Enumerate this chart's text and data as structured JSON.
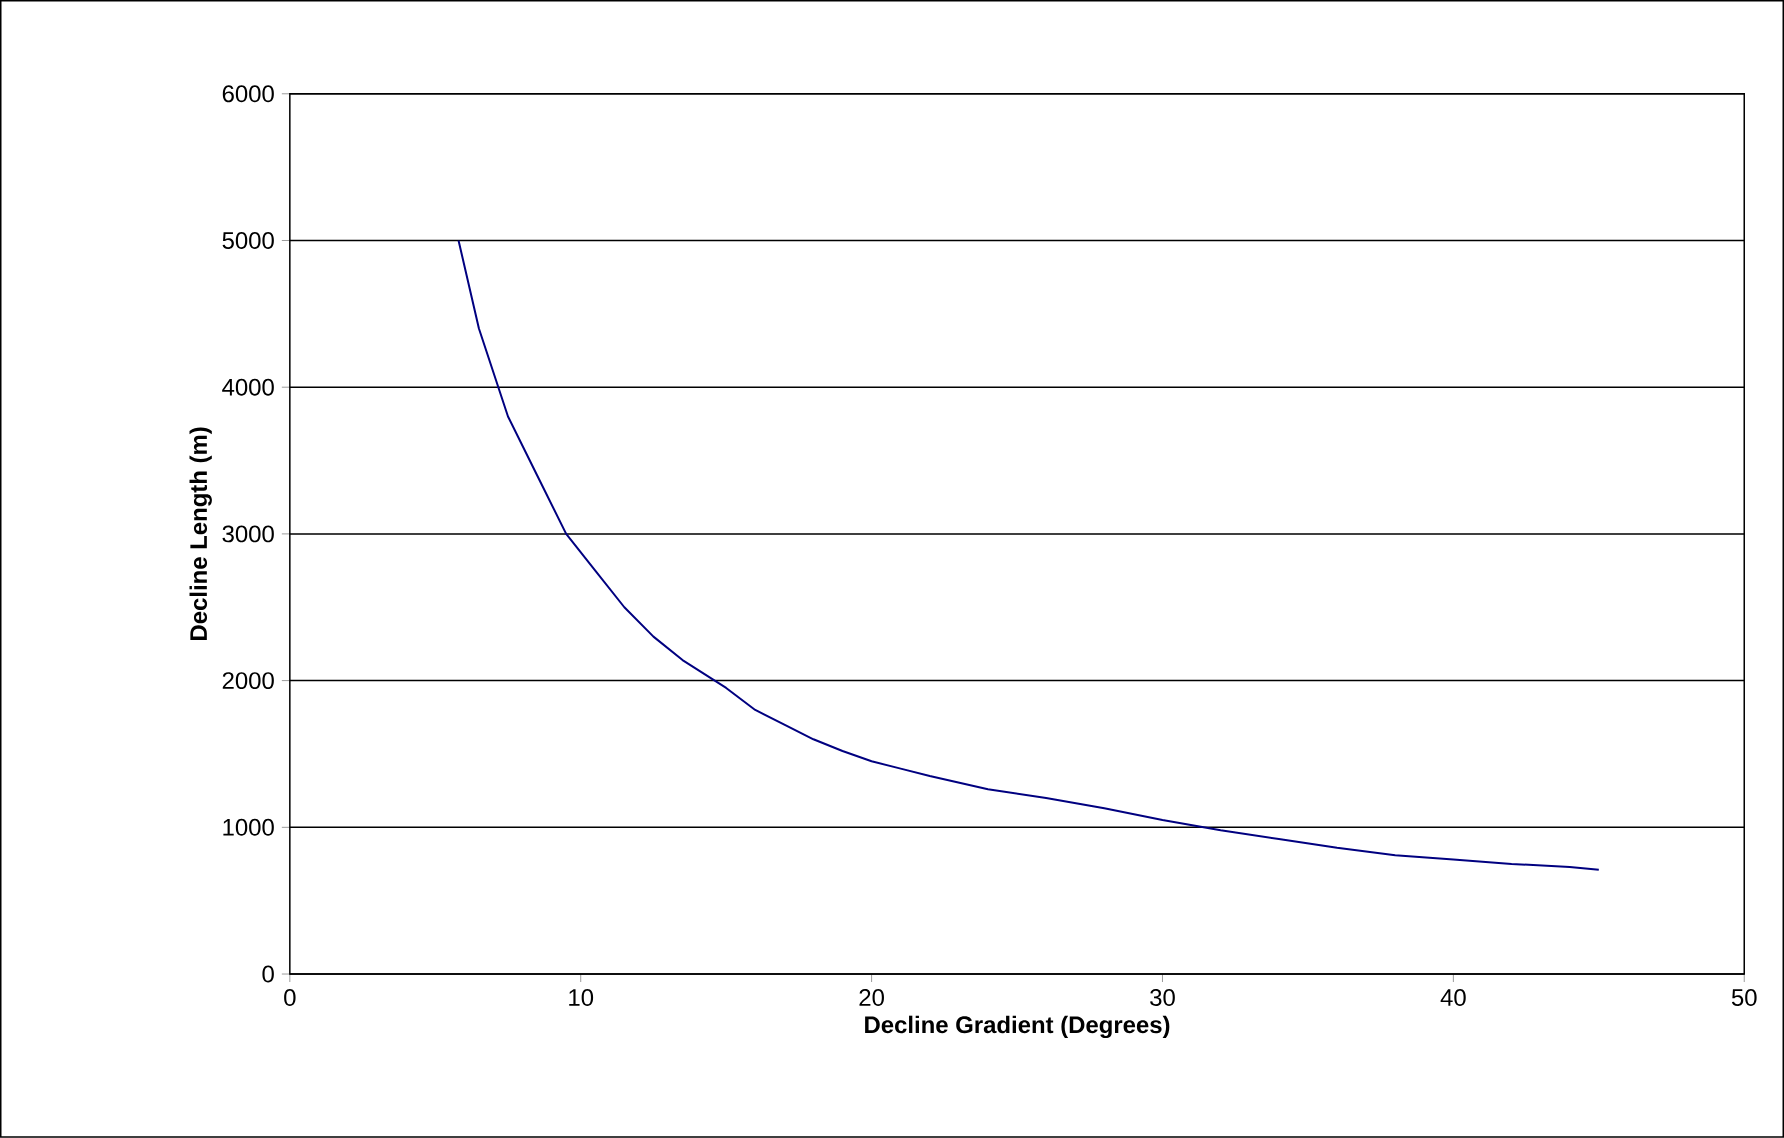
{
  "chart_data": {
    "type": "line",
    "xlabel": "Decline Gradient (Degrees)",
    "ylabel": "Decline Length (m)",
    "x": [
      5.8,
      6.5,
      7.5,
      8.5,
      9.5,
      10.5,
      11.5,
      12.5,
      13.5,
      15,
      16,
      17,
      18,
      19,
      20,
      21,
      22,
      24,
      26,
      28,
      30,
      32,
      34,
      36,
      38,
      40,
      42,
      44,
      45
    ],
    "values": [
      5000,
      4400,
      3800,
      3400,
      3000,
      2750,
      2500,
      2300,
      2140,
      1950,
      1800,
      1700,
      1600,
      1520,
      1450,
      1400,
      1350,
      1260,
      1200,
      1130,
      1050,
      980,
      920,
      860,
      810,
      780,
      750,
      730,
      710
    ],
    "color": "#000080",
    "xlim": [
      0,
      50
    ],
    "ylim": [
      0,
      6000
    ],
    "xticks": [
      0,
      10,
      20,
      30,
      40,
      50
    ],
    "yticks": [
      0,
      1000,
      2000,
      3000,
      4000,
      5000,
      6000
    ],
    "grid": "y",
    "marker": "none",
    "line_style": "solid"
  }
}
